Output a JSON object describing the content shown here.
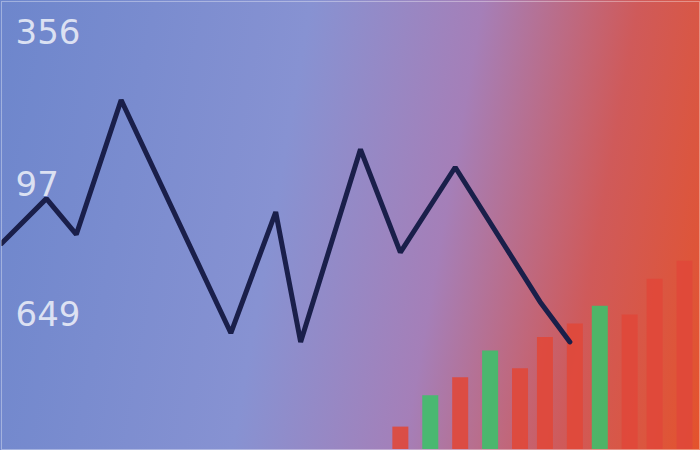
{
  "chart_data": {
    "type": "line",
    "tick_labels": false,
    "grid": false,
    "xlim": [
      0,
      700
    ],
    "ylim": [
      0,
      100
    ],
    "annotations": [
      "356",
      "97",
      "649"
    ],
    "series": [
      {
        "type": "line",
        "color": "#1a1f4a",
        "marker": "none",
        "line_style": "solid",
        "x": [
          0,
          45,
          75,
          120,
          230,
          275,
          300,
          360,
          400,
          455,
          540,
          570
        ],
        "values": [
          46,
          56,
          48,
          78,
          26,
          53,
          24,
          67,
          44,
          63,
          33,
          24
        ]
      },
      {
        "type": "bar",
        "x": [
          400,
          430,
          460,
          490,
          520,
          545,
          575,
          600,
          630,
          655,
          685
        ],
        "values": [
          5,
          12,
          16,
          22,
          18,
          25,
          28,
          32,
          30,
          38,
          42
        ],
        "colors": [
          "#e0483a",
          "#3fbf6a",
          "#e0483a",
          "#3fbf6a",
          "#e0483a",
          "#e0483a",
          "#e0483a",
          "#3fbf6a",
          "#e0483a",
          "#e0483a",
          "#e0483a"
        ]
      }
    ]
  }
}
